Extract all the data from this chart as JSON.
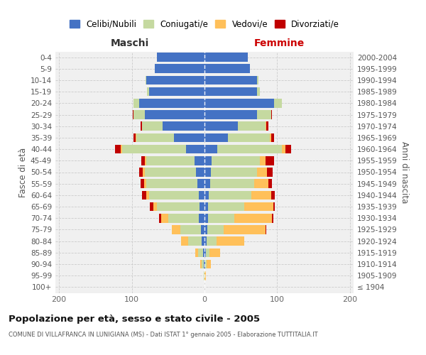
{
  "age_groups": [
    "100+",
    "95-99",
    "90-94",
    "85-89",
    "80-84",
    "75-79",
    "70-74",
    "65-69",
    "60-64",
    "55-59",
    "50-54",
    "45-49",
    "40-44",
    "35-39",
    "30-34",
    "25-29",
    "20-24",
    "15-19",
    "10-14",
    "5-9",
    "0-4"
  ],
  "birth_years": [
    "≤ 1904",
    "1905-1909",
    "1910-1914",
    "1915-1919",
    "1920-1924",
    "1925-1929",
    "1930-1934",
    "1935-1939",
    "1940-1944",
    "1945-1949",
    "1950-1954",
    "1955-1959",
    "1960-1964",
    "1965-1969",
    "1970-1974",
    "1975-1979",
    "1980-1984",
    "1985-1989",
    "1990-1994",
    "1995-1999",
    "2000-2004"
  ],
  "male_celibi": [
    0,
    0,
    1,
    2,
    4,
    5,
    8,
    7,
    8,
    10,
    12,
    14,
    25,
    42,
    58,
    82,
    90,
    76,
    80,
    68,
    65
  ],
  "male_coniugati": [
    0,
    1,
    3,
    7,
    18,
    28,
    42,
    58,
    68,
    70,
    70,
    66,
    88,
    52,
    28,
    16,
    8,
    3,
    1,
    0,
    0
  ],
  "male_vedovi": [
    0,
    0,
    2,
    4,
    10,
    12,
    10,
    5,
    4,
    3,
    3,
    2,
    2,
    1,
    0,
    0,
    0,
    0,
    0,
    0,
    0
  ],
  "male_divorziati": [
    0,
    0,
    0,
    0,
    0,
    0,
    2,
    5,
    6,
    5,
    5,
    5,
    8,
    3,
    2,
    1,
    0,
    0,
    0,
    0,
    0
  ],
  "female_celibi": [
    0,
    0,
    1,
    2,
    3,
    4,
    5,
    5,
    6,
    8,
    9,
    10,
    18,
    32,
    46,
    72,
    96,
    72,
    72,
    62,
    60
  ],
  "female_coniugati": [
    0,
    0,
    2,
    5,
    14,
    22,
    36,
    50,
    58,
    60,
    63,
    66,
    88,
    58,
    38,
    20,
    10,
    4,
    2,
    0,
    0
  ],
  "female_vedovi": [
    0,
    2,
    6,
    14,
    38,
    58,
    52,
    40,
    28,
    20,
    14,
    8,
    5,
    2,
    1,
    0,
    0,
    0,
    0,
    0,
    0
  ],
  "female_divorziati": [
    0,
    0,
    0,
    0,
    0,
    1,
    2,
    2,
    5,
    5,
    8,
    12,
    8,
    4,
    3,
    1,
    0,
    0,
    0,
    0,
    0
  ],
  "colors": {
    "celibi": "#4472c4",
    "coniugati": "#c5d9a0",
    "vedovi": "#ffc05a",
    "divorziati": "#c00000"
  },
  "title": "Popolazione per età, sesso e stato civile - 2005",
  "subtitle": "COMUNE DI VILLAFRANCA IN LUNIGIANA (MS) - Dati ISTAT 1° gennaio 2005 - Elaborazione TUTTITALIA.IT",
  "label_maschi": "Maschi",
  "label_femmine": "Femmine",
  "ylabel_left": "Fasce di età",
  "ylabel_right": "Anni di nascita",
  "legend_labels": [
    "Celibi/Nubili",
    "Coniugati/e",
    "Vedovi/e",
    "Divorziati/e"
  ],
  "xlim": 205,
  "background_color": "#ffffff",
  "plot_bg": "#f0f0f0"
}
